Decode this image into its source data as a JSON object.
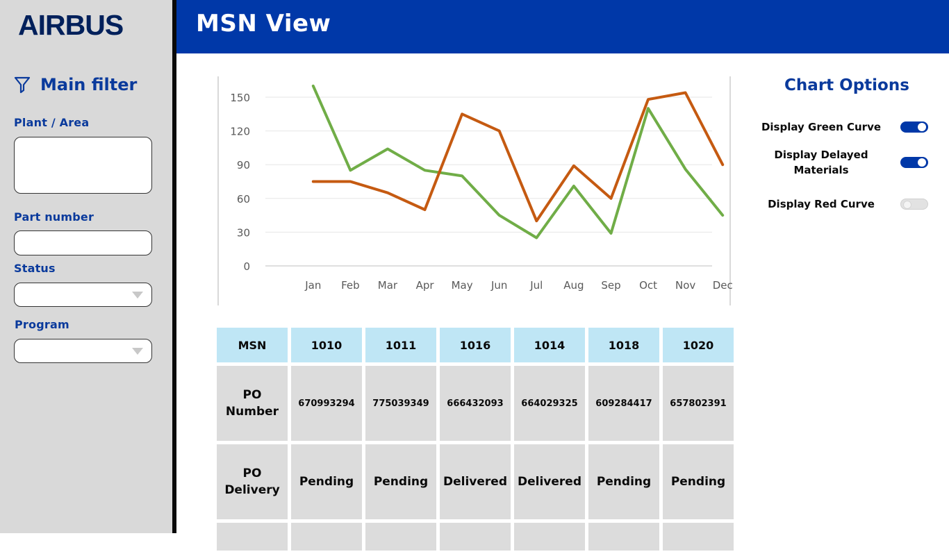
{
  "brand": {
    "logo_text": "AIRBUS"
  },
  "sidebar": {
    "filter_title": "Main filter",
    "fields": {
      "plant_area": {
        "label": "Plant / Area",
        "value": ""
      },
      "part_number": {
        "label": "Part number",
        "value": ""
      },
      "status": {
        "label": "Status",
        "value": ""
      },
      "program": {
        "label": "Program",
        "value": ""
      }
    }
  },
  "header": {
    "title": "MSN View"
  },
  "chart_data": {
    "type": "line",
    "categories": [
      "Jan",
      "Feb",
      "Mar",
      "Apr",
      "May",
      "Jun",
      "Jul",
      "Aug",
      "Sep",
      "Oct",
      "Nov",
      "Dec"
    ],
    "series": [
      {
        "color": "#70ad47",
        "values": [
          160,
          85,
          104,
          85,
          80,
          45,
          25,
          71,
          29,
          140,
          86,
          45
        ]
      },
      {
        "color": "#c55a11",
        "values": [
          75,
          75,
          65,
          50,
          135,
          120,
          40,
          89,
          60,
          148,
          154,
          90
        ]
      }
    ],
    "ylim": [
      0,
      150
    ],
    "yticks": [
      0,
      30,
      60,
      90,
      120,
      150
    ],
    "xlabel": "",
    "ylabel": "",
    "grid": true
  },
  "chart_options": {
    "title": "Chart Options",
    "options": [
      {
        "label": "Display Green Curve",
        "on": true
      },
      {
        "label": "Display Delayed Materials",
        "on": true
      },
      {
        "label": "Display Red Curve",
        "on": false
      }
    ]
  },
  "table": {
    "header_label": "MSN",
    "msns": [
      "1010",
      "1011",
      "1016",
      "1014",
      "1018",
      "1020"
    ],
    "rows": [
      {
        "label": "PO Number",
        "values": [
          "670993294",
          "775039349",
          "666432093",
          "664029325",
          "609284417",
          "657802391"
        ]
      },
      {
        "label": "PO Delivery",
        "values": [
          "Pending",
          "Pending",
          "Delivered",
          "Delivered",
          "Pending",
          "Pending"
        ]
      }
    ]
  },
  "colors": {
    "brand_blue": "#0038a8",
    "logo_navy": "#00205b",
    "header_cell": "#bfe6f5",
    "body_cell": "#dcdcdc",
    "sidebar_bg": "#d9d9d9"
  }
}
